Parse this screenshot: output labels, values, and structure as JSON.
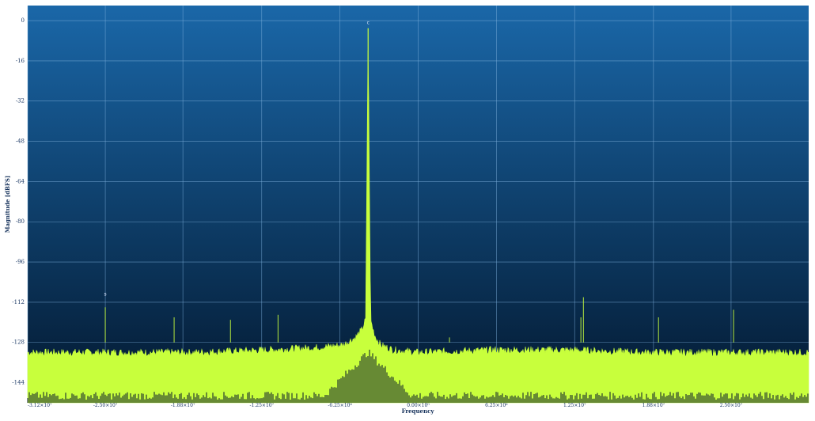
{
  "chart_data": {
    "type": "line",
    "title": "",
    "xlabel": "Frequency",
    "ylabel": "Magnitude [dBFS]",
    "ylim": [
      -152,
      6
    ],
    "xlim": [
      -31200000,
      31200000
    ],
    "y_ticks": [
      0,
      -16,
      -32,
      -48,
      -64,
      -80,
      -96,
      -112,
      -128,
      -144
    ],
    "y_tick_labels": [
      "0",
      "-16",
      "-32",
      "-48",
      "-64",
      "-80",
      "-96",
      "-112",
      "-128",
      "-144"
    ],
    "x_ticks": [
      -31200000,
      -25000000,
      -18800000,
      -12500000,
      -6250000,
      0,
      6250000,
      12500000,
      18800000,
      25000000
    ],
    "x_tick_labels": [
      "-3.12×10⁷",
      "-2.50×10⁷",
      "-1.88×10⁷",
      "-1.25×10⁷",
      "-6.25×10⁶",
      "0.00×10⁰",
      "6.25×10⁶",
      "1.25×10⁷",
      "1.88×10⁷",
      "2.50×10⁷"
    ],
    "grid": true,
    "background_gradient": [
      "#1a67a8",
      "#03182f"
    ],
    "series": [
      {
        "color": "#c8ff3c",
        "x": [
          -31200000,
          -24000000,
          -18000000,
          -12000000,
          -8000000,
          -6000000,
          -5000000,
          -4500000,
          -4200000,
          -4000000,
          -3800000,
          -3600000,
          -3400000,
          -3000000,
          -2000000,
          0,
          6000000,
          12000000,
          18000000,
          24000000,
          31200000
        ],
        "y": [
          -132,
          -132,
          -132,
          -131,
          -130,
          -129,
          -126,
          -123,
          -119,
          -3,
          -119,
          -123,
          -126,
          -129,
          -131,
          -132,
          -131,
          -131,
          -132,
          -132,
          -132
        ],
        "noise_floor": -138,
        "spurs": [
          {
            "x": -25000000,
            "y": -114
          },
          {
            "x": -19500000,
            "y": -118
          },
          {
            "x": -15000000,
            "y": -119
          },
          {
            "x": -11200000,
            "y": -117
          },
          {
            "x": -4000000,
            "y": -66
          },
          {
            "x": 2500000,
            "y": -126
          },
          {
            "x": 13200000,
            "y": -110
          },
          {
            "x": 13000000,
            "y": -118
          },
          {
            "x": 19200000,
            "y": -118
          },
          {
            "x": 25200000,
            "y": -115
          }
        ]
      }
    ],
    "markers": [
      {
        "label": "c",
        "x": -4000000,
        "y": -2
      },
      {
        "label": "s",
        "x": -25000000,
        "y": -110
      }
    ]
  }
}
